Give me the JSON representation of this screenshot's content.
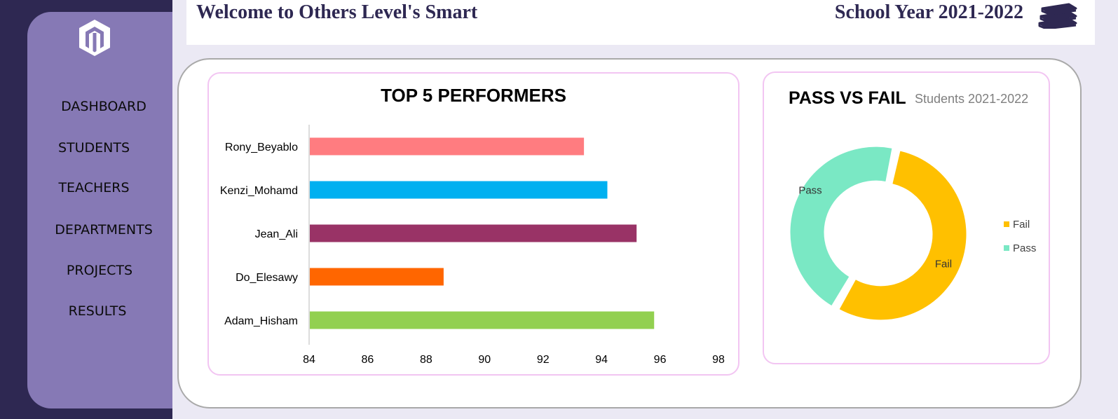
{
  "header": {
    "welcome_text": "Welcome to Others Level's Smart",
    "school_year": "School Year 2021-2022",
    "books_icon": "books-icon"
  },
  "sidebar": {
    "logo_icon": "hexagon-logo-icon",
    "items": [
      {
        "label": "DASHBOARD"
      },
      {
        "label": "STUDENTS"
      },
      {
        "label": "TEACHERS"
      },
      {
        "label": "DEPARTMENTS"
      },
      {
        "label": "PROJECTS"
      },
      {
        "label": "RESULTS"
      }
    ]
  },
  "colors": {
    "sidebar_dark": "#2e2852",
    "sidebar_light": "#8679b5",
    "background": "#ebe9f4",
    "card_border": "#f2c5f2"
  },
  "chart_data": [
    {
      "type": "bar",
      "orientation": "horizontal",
      "title": "TOP 5 PERFORMERS",
      "categories": [
        "Rony_Beyablo",
        "Kenzi_Mohamd",
        "Jean_Ali",
        "Do_Elesawy",
        "Adam_Hisham"
      ],
      "values": [
        93.4,
        94.2,
        95.2,
        88.6,
        95.8
      ],
      "colors": [
        "#ff7c80",
        "#00b0f0",
        "#993366",
        "#ff6600",
        "#92d050"
      ],
      "xlim": [
        84,
        98
      ],
      "xticks": [
        84,
        86,
        88,
        90,
        92,
        94,
        96,
        98
      ],
      "grid": false
    },
    {
      "type": "pie",
      "variant": "donut",
      "title": "PASS VS FAIL",
      "subtitle": "Students 2021-2022",
      "categories": [
        "Fail",
        "Pass"
      ],
      "values": [
        55,
        45
      ],
      "colors": [
        "#ffc000",
        "#7ae8c4"
      ],
      "legend": "right"
    }
  ]
}
